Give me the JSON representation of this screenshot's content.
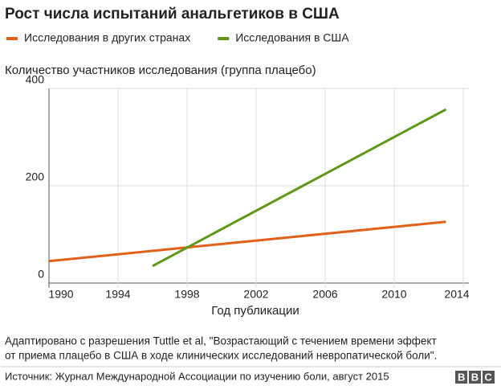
{
  "chart_data": {
    "type": "line",
    "title": "Рост числа испытаний анальгетиков в США",
    "y_label": "Количество участников исследования (группа плацебо)",
    "x_label": "Год публикации",
    "series": [
      {
        "name": "Исследования в других странах",
        "color": "#e2611a",
        "x": [
          1990,
          2013
        ],
        "values": [
          45,
          126
        ]
      },
      {
        "name": "Исследования в США",
        "color": "#5c9a13",
        "x": [
          1996,
          2013
        ],
        "values": [
          35,
          357
        ]
      }
    ],
    "xlim": [
      1990,
      2014
    ],
    "xticks": [
      1990,
      1994,
      1998,
      2002,
      2006,
      2010,
      2014
    ],
    "ylim": [
      0,
      400
    ],
    "yticks": [
      0,
      200,
      400
    ],
    "grid": true,
    "legend": "top"
  },
  "footer": {
    "note": [
      "Адаптировано с разрешения Tuttle et al, \"Возрастающий с течением времени эффект",
      "от приема плацебо в США в ходе клинических исследований невропатической боли\"."
    ],
    "source": "Источник: Журнал Международной Ассоциации по изучению боли, август 2015",
    "logo": "BBC"
  }
}
